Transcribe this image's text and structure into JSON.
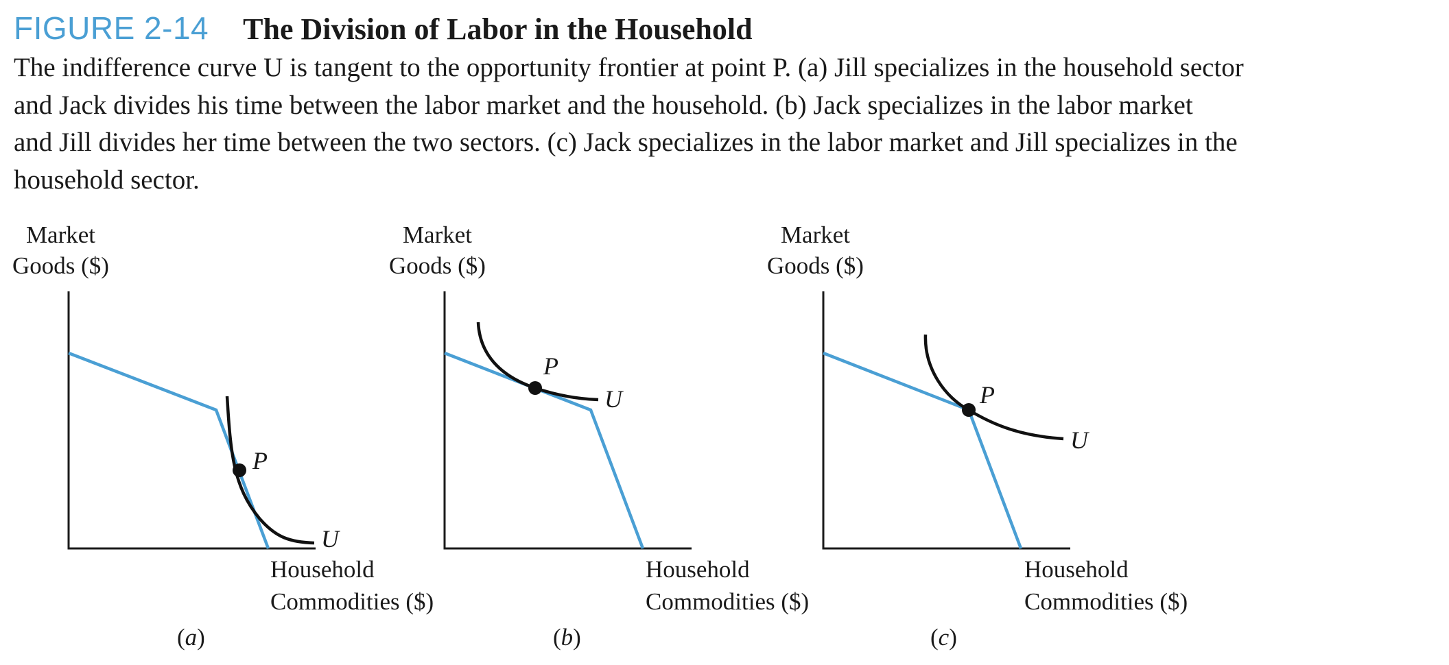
{
  "figure": {
    "number": "FIGURE 2-14",
    "title": "The Division of Labor in the Household",
    "accent_color": "#4a9fd4"
  },
  "caption": {
    "lines": [
      "The indifference curve U is tangent to the opportunity frontier at point P. (a) Jill specializes in the household sector",
      "and Jack divides his time between the labor market and the household. (b) Jack specializes in the labor market",
      "and Jill divides her time between the two sectors. (c) Jack specializes in the labor market and Jill specializes in the",
      "household sector."
    ]
  },
  "chart_data": [
    {
      "type": "line",
      "panel": "(a)",
      "ylabel_line1": "Market",
      "ylabel_line2": "Goods ($)",
      "xlabel_line1": "Household",
      "xlabel_line2": "Commodities ($)",
      "point_label": "P",
      "curve_label": "U",
      "frontier_color": "#4a9fd4",
      "curve_color": "#111111"
    },
    {
      "type": "line",
      "panel": "(b)",
      "ylabel_line1": "Market",
      "ylabel_line2": "Goods ($)",
      "xlabel_line1": "Household",
      "xlabel_line2": "Commodities ($)",
      "point_label": "P",
      "curve_label": "U",
      "frontier_color": "#4a9fd4",
      "curve_color": "#111111"
    },
    {
      "type": "line",
      "panel": "(c)",
      "ylabel_line1": "Market",
      "ylabel_line2": "Goods ($)",
      "xlabel_line1": "Household",
      "xlabel_line2": "Commodities ($)",
      "point_label": "P",
      "curve_label": "U",
      "frontier_color": "#4a9fd4",
      "curve_color": "#111111"
    }
  ]
}
